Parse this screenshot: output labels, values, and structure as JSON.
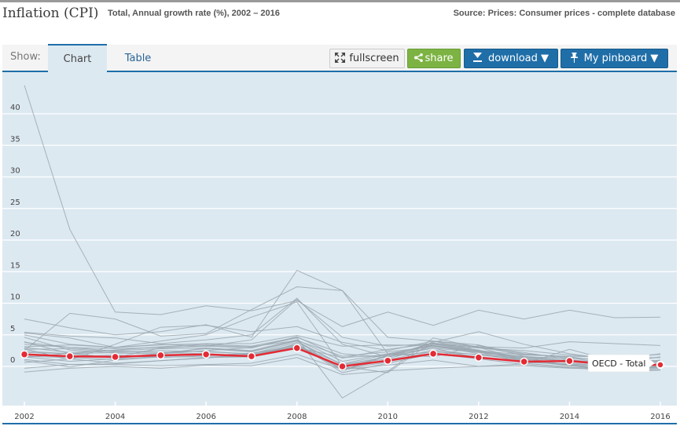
{
  "header": {
    "title": "Inflation (CPI)",
    "subtitle": "Total, Annual growth rate (%), 2002 – 2016",
    "source": "Source: Prices: Consumer prices - complete database"
  },
  "toolbar": {
    "show_label": "Show:",
    "tabs": [
      {
        "label": "Chart",
        "active": true
      },
      {
        "label": "Table",
        "active": false
      }
    ],
    "fullscreen_label": "fullscreen",
    "share_label": "share",
    "download_label": "download ▼",
    "pinboard_label": "My pinboard ▼",
    "icons": {
      "fullscreen": "expand-arrows-icon",
      "share": "share-icon",
      "download": "download-icon",
      "pinboard": "pin-icon"
    }
  },
  "colors": {
    "accent_blue": "#1f6ea8",
    "share_green": "#7cb342",
    "highlight_red": "#e32b35",
    "background_series": "#9aa7b0",
    "plot_bg": "#dde9f1"
  },
  "chart_data": {
    "type": "line",
    "title": "Inflation (CPI)",
    "xlabel": "",
    "ylabel": "",
    "x": [
      2002,
      2003,
      2004,
      2005,
      2006,
      2007,
      2008,
      2009,
      2010,
      2011,
      2012,
      2013,
      2014,
      2015,
      2016
    ],
    "x_tick_labels": [
      "2002",
      "2004",
      "2006",
      "2008",
      "2010",
      "2012",
      "2014",
      "2016"
    ],
    "y_tick_labels": [
      "0",
      "5",
      "10",
      "15",
      "20",
      "25",
      "30",
      "35",
      "40"
    ],
    "y_ticks": [
      0,
      5,
      10,
      15,
      20,
      25,
      30,
      35,
      40
    ],
    "ylim": [
      -6,
      46
    ],
    "xlim": [
      2002,
      2016
    ],
    "grid": true,
    "highlight": {
      "name": "OECD - Total",
      "values": [
        1.9,
        1.6,
        1.5,
        1.75,
        1.9,
        1.6,
        2.9,
        0.0,
        0.9,
        2.0,
        1.4,
        0.75,
        0.85,
        0.25,
        0.25
      ]
    },
    "background_series": [
      {
        "name": "s1",
        "values": [
          44.5,
          21.7,
          8.6,
          8.2,
          9.6,
          8.8,
          10.4,
          6.3,
          8.6,
          6.5,
          8.9,
          7.5,
          8.9,
          7.7,
          7.8
        ]
      },
      {
        "name": "s2",
        "values": [
          7.5,
          6.1,
          5.0,
          5.5,
          6.6,
          4.6,
          15.2,
          12.0,
          4.6,
          4.0,
          3.1,
          2.9,
          3.9,
          3.6,
          3.3
        ]
      },
      {
        "name": "s3",
        "values": [
          2.5,
          8.4,
          7.5,
          4.8,
          5.2,
          9.0,
          12.6,
          12.0,
          2.0,
          1.5,
          3.3,
          2.0,
          1.4,
          0.2,
          -0.2
        ]
      },
      {
        "name": "s4",
        "values": [
          5.4,
          4.8,
          4.5,
          3.6,
          4.2,
          5.0,
          10.8,
          3.5,
          1.5,
          3.8,
          5.5,
          3.5,
          2.0,
          1.0,
          2.0
        ]
      },
      {
        "name": "s5",
        "values": [
          5.0,
          3.5,
          3.0,
          4.0,
          5.0,
          7.8,
          10.2,
          0.0,
          -1.0,
          4.0,
          2.5,
          1.0,
          0.2,
          -0.5,
          0.5
        ]
      },
      {
        "name": "s6",
        "values": [
          3.5,
          3.0,
          2.8,
          3.0,
          3.2,
          4.2,
          10.6,
          4.6,
          3.2,
          3.6,
          2.6,
          0.8,
          0.2,
          -0.8,
          -0.6
        ]
      },
      {
        "name": "s7",
        "values": [
          2.8,
          1.0,
          3.5,
          6.2,
          6.5,
          5.5,
          6.3,
          3.8,
          2.5,
          4.0,
          3.4,
          1.6,
          1.0,
          0.5,
          1.5
        ]
      },
      {
        "name": "s8",
        "values": [
          1.5,
          0.8,
          1.2,
          2.0,
          2.5,
          3.0,
          4.5,
          -5.0,
          -0.8,
          4.5,
          3.0,
          1.0,
          0.3,
          0.0,
          0.8
        ]
      },
      {
        "name": "s9",
        "values": [
          -0.9,
          -0.3,
          0.0,
          -0.3,
          0.2,
          0.1,
          1.4,
          -1.3,
          -0.7,
          -0.3,
          0.0,
          0.4,
          2.7,
          0.8,
          -0.1
        ]
      },
      {
        "name": "s10",
        "values": [
          0.9,
          -0.1,
          1.0,
          1.5,
          1.5,
          1.6,
          3.6,
          -0.5,
          0.7,
          2.4,
          1.5,
          0.6,
          0.4,
          0.0,
          0.2
        ]
      },
      {
        "name": "s11",
        "values": [
          3.0,
          2.2,
          2.5,
          2.8,
          2.9,
          2.5,
          4.2,
          0.8,
          2.0,
          3.3,
          2.0,
          1.2,
          0.9,
          0.4,
          0.8
        ]
      },
      {
        "name": "s12",
        "values": [
          2.2,
          2.0,
          2.2,
          2.5,
          2.3,
          2.0,
          3.8,
          0.3,
          1.5,
          2.9,
          2.2,
          1.4,
          0.8,
          0.1,
          0.4
        ]
      },
      {
        "name": "s13",
        "values": [
          1.6,
          1.4,
          1.1,
          1.6,
          1.9,
          1.8,
          3.3,
          -0.4,
          1.0,
          2.6,
          1.8,
          1.1,
          0.6,
          -0.3,
          0.3
        ]
      },
      {
        "name": "s14",
        "values": [
          2.7,
          2.8,
          2.3,
          2.2,
          2.0,
          1.7,
          3.2,
          0.4,
          1.9,
          3.3,
          2.5,
          1.5,
          0.8,
          -0.1,
          0.0
        ]
      },
      {
        "name": "s15",
        "values": [
          1.4,
          2.1,
          1.3,
          2.1,
          2.8,
          2.3,
          4.0,
          0.2,
          1.2,
          3.2,
          2.4,
          1.3,
          0.2,
          -0.6,
          -0.3
        ]
      },
      {
        "name": "s16",
        "values": [
          4.6,
          2.6,
          2.1,
          2.0,
          2.9,
          2.4,
          4.1,
          1.6,
          2.3,
          3.1,
          2.3,
          0.5,
          -0.1,
          -0.5,
          -0.1
        ]
      },
      {
        "name": "s17",
        "values": [
          3.1,
          3.4,
          3.0,
          3.5,
          3.2,
          2.9,
          4.7,
          1.3,
          2.7,
          3.6,
          2.9,
          2.5,
          1.8,
          1.3,
          1.4
        ]
      },
      {
        "name": "s18",
        "values": [
          2.0,
          1.5,
          1.8,
          1.4,
          1.7,
          2.1,
          3.0,
          -0.1,
          1.6,
          2.3,
          1.9,
          0.9,
          0.1,
          -0.4,
          0.2
        ]
      },
      {
        "name": "s19",
        "values": [
          0.6,
          1.2,
          0.5,
          0.9,
          1.4,
          1.5,
          3.6,
          -1.0,
          0.5,
          2.0,
          1.2,
          0.3,
          -0.2,
          -0.7,
          -0.5
        ]
      },
      {
        "name": "s20",
        "values": [
          3.8,
          3.0,
          2.4,
          2.2,
          2.4,
          1.9,
          3.0,
          1.4,
          1.8,
          3.5,
          2.5,
          1.8,
          1.6,
          1.5,
          1.9
        ]
      },
      {
        "name": "s21",
        "values": [
          5.3,
          4.5,
          3.0,
          3.4,
          3.6,
          3.6,
          4.9,
          3.2,
          3.4,
          3.3,
          2.3,
          1.5,
          1.3,
          1.0,
          0.9
        ]
      },
      {
        "name": "s22",
        "values": [
          2.4,
          2.0,
          2.6,
          3.1,
          3.5,
          3.2,
          4.6,
          2.0,
          1.4,
          3.5,
          3.0,
          1.9,
          1.5,
          0.6,
          0.6
        ]
      },
      {
        "name": "s23",
        "values": [
          1.1,
          0.3,
          0.4,
          0.9,
          1.3,
          2.0,
          3.4,
          -0.6,
          1.8,
          2.9,
          1.3,
          0.8,
          0.2,
          -0.3,
          -0.1
        ]
      },
      {
        "name": "s24",
        "values": [
          3.9,
          2.0,
          1.4,
          2.9,
          3.3,
          3.1,
          4.1,
          -0.7,
          1.7,
          3.7,
          3.1,
          2.2,
          1.1,
          0.2,
          1.0
        ]
      },
      {
        "name": "s25",
        "values": [
          -0.3,
          0.3,
          0.3,
          0.1,
          0.3,
          0.5,
          1.9,
          -0.5,
          0.2,
          1.0,
          0.0,
          0.1,
          -0.3,
          -0.4,
          -0.2
        ]
      }
    ]
  }
}
